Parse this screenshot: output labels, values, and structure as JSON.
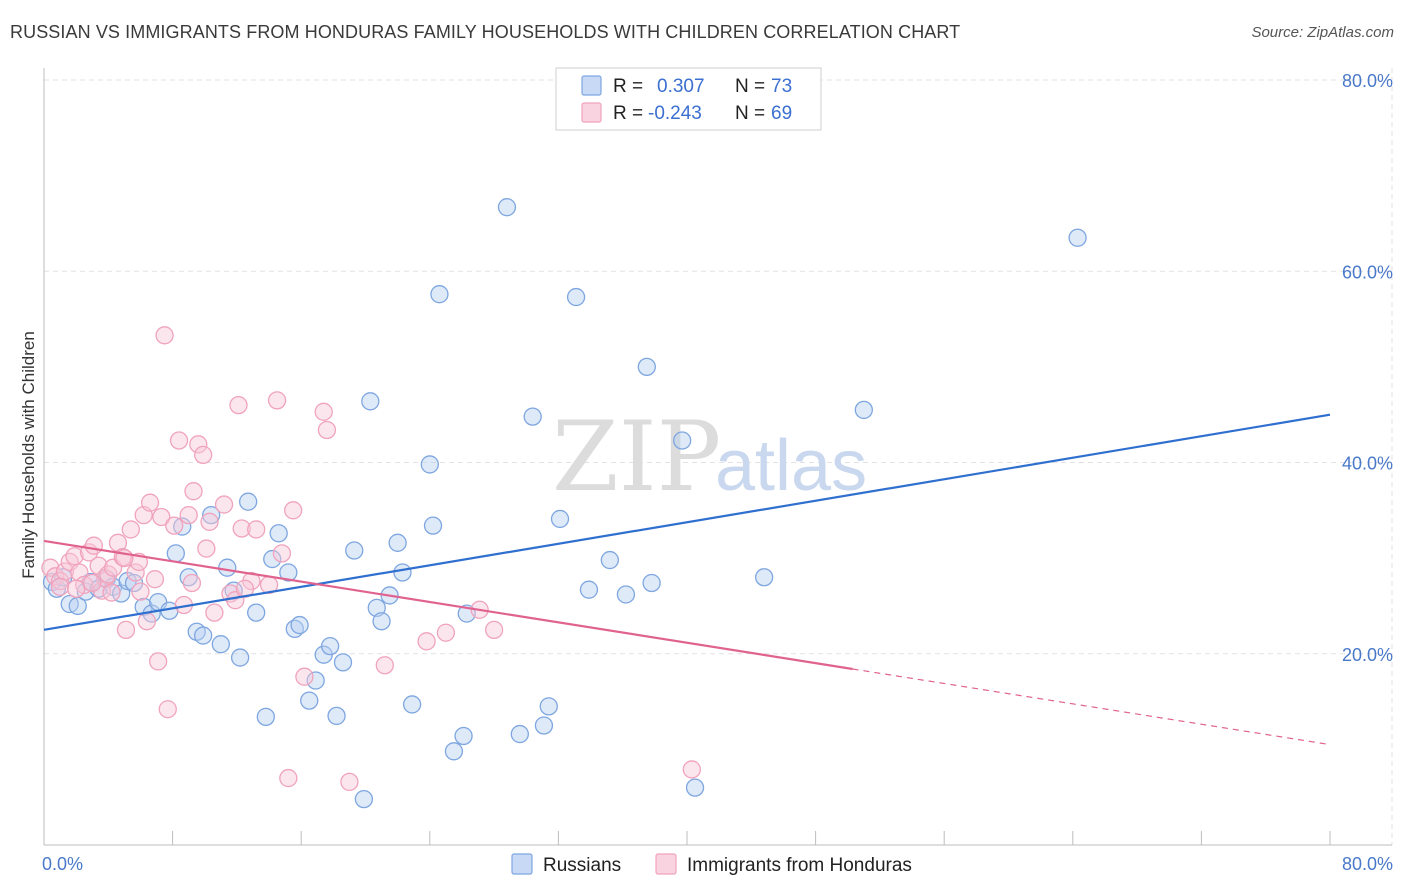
{
  "title": "RUSSIAN VS IMMIGRANTS FROM HONDURAS FAMILY HOUSEHOLDS WITH CHILDREN CORRELATION CHART",
  "source": "Source: ZipAtlas.com",
  "watermark": {
    "zip": "ZIP",
    "atlas": "atlas"
  },
  "chart_data": {
    "type": "scatter",
    "xlabel": "",
    "ylabel": "Family Households with Children",
    "xlim": [
      0,
      80
    ],
    "ylim": [
      0,
      80
    ],
    "x_tick_labels": [
      "0.0%",
      "80.0%"
    ],
    "y_ticks": [
      20,
      40,
      60,
      80
    ],
    "y_tick_labels": [
      "20.0%",
      "40.0%",
      "60.0%",
      "80.0%"
    ],
    "grid": true,
    "legend": {
      "position": "top-center",
      "entries": [
        {
          "r_label": "R =",
          "r_value": "0.307",
          "n_label": "N =",
          "n_value": "73"
        },
        {
          "r_label": "R =",
          "r_value": "-0.243",
          "n_label": "N =",
          "n_value": "69"
        }
      ]
    },
    "series": [
      {
        "name": "Russians",
        "color": "#7ea6e0",
        "fill": "#b9d0f2",
        "line_color": "#2f6fcf",
        "trend": {
          "x": [
            0,
            80
          ],
          "y": [
            22.5,
            45.0
          ],
          "dashed_from": null
        },
        "points": [
          [
            0.5,
            27.5
          ],
          [
            0.8,
            26.8
          ],
          [
            1.2,
            28.0
          ],
          [
            1.6,
            25.2
          ],
          [
            2.1,
            25.0
          ],
          [
            2.6,
            26.5
          ],
          [
            2.9,
            27.5
          ],
          [
            3.4,
            26.8
          ],
          [
            3.9,
            27.8
          ],
          [
            4.3,
            27.0
          ],
          [
            4.8,
            26.3
          ],
          [
            5.2,
            27.6
          ],
          [
            5.6,
            27.4
          ],
          [
            6.2,
            24.9
          ],
          [
            6.7,
            24.2
          ],
          [
            7.1,
            25.4
          ],
          [
            7.8,
            24.5
          ],
          [
            8.2,
            30.5
          ],
          [
            8.6,
            33.3
          ],
          [
            9.0,
            28.0
          ],
          [
            9.5,
            22.3
          ],
          [
            9.9,
            21.9
          ],
          [
            10.4,
            34.5
          ],
          [
            11.0,
            21.0
          ],
          [
            11.4,
            29.0
          ],
          [
            11.8,
            26.6
          ],
          [
            12.2,
            19.6
          ],
          [
            12.7,
            35.9
          ],
          [
            13.2,
            24.3
          ],
          [
            13.8,
            13.4
          ],
          [
            14.2,
            29.9
          ],
          [
            14.6,
            32.6
          ],
          [
            15.2,
            28.5
          ],
          [
            15.6,
            22.6
          ],
          [
            15.9,
            23.0
          ],
          [
            16.5,
            15.1
          ],
          [
            16.9,
            17.2
          ],
          [
            17.4,
            19.9
          ],
          [
            17.8,
            20.8
          ],
          [
            18.2,
            13.5
          ],
          [
            18.6,
            19.1
          ],
          [
            19.3,
            30.8
          ],
          [
            19.9,
            4.8
          ],
          [
            20.3,
            46.4
          ],
          [
            20.7,
            24.8
          ],
          [
            21.0,
            23.4
          ],
          [
            21.5,
            26.1
          ],
          [
            22.0,
            31.6
          ],
          [
            22.3,
            28.5
          ],
          [
            22.9,
            14.7
          ],
          [
            24.0,
            39.8
          ],
          [
            24.2,
            33.4
          ],
          [
            24.6,
            57.6
          ],
          [
            25.5,
            9.8
          ],
          [
            26.1,
            11.4
          ],
          [
            26.3,
            24.2
          ],
          [
            28.8,
            66.7
          ],
          [
            29.6,
            11.6
          ],
          [
            30.4,
            44.8
          ],
          [
            31.1,
            12.5
          ],
          [
            31.4,
            14.5
          ],
          [
            32.1,
            34.1
          ],
          [
            33.1,
            57.3
          ],
          [
            33.9,
            26.7
          ],
          [
            35.2,
            29.8
          ],
          [
            36.2,
            26.2
          ],
          [
            37.5,
            50.0
          ],
          [
            37.8,
            27.4
          ],
          [
            39.7,
            42.3
          ],
          [
            40.5,
            6.0
          ],
          [
            44.8,
            28.0
          ],
          [
            51.0,
            45.5
          ],
          [
            64.3,
            63.5
          ]
        ]
      },
      {
        "name": "Immigrants from Honduras",
        "color": "#f0a3bd",
        "fill": "#f8c8d8",
        "line_color": "#e0628f",
        "trend": {
          "x": [
            0,
            80
          ],
          "y": [
            31.8,
            10.5
          ],
          "dashed_from": 50.3
        },
        "points": [
          [
            0.4,
            29.0
          ],
          [
            0.7,
            28.1
          ],
          [
            1.0,
            27.6
          ],
          [
            1.3,
            28.6
          ],
          [
            1.6,
            29.6
          ],
          [
            1.9,
            30.2
          ],
          [
            2.2,
            28.5
          ],
          [
            2.5,
            27.2
          ],
          [
            2.8,
            30.6
          ],
          [
            3.1,
            31.3
          ],
          [
            3.4,
            29.2
          ],
          [
            3.6,
            26.6
          ],
          [
            3.8,
            27.9
          ],
          [
            4.0,
            28.3
          ],
          [
            4.3,
            29.0
          ],
          [
            4.6,
            31.6
          ],
          [
            4.9,
            30.1
          ],
          [
            5.1,
            22.5
          ],
          [
            5.4,
            33.0
          ],
          [
            5.7,
            28.5
          ],
          [
            5.9,
            29.6
          ],
          [
            6.2,
            34.5
          ],
          [
            6.4,
            23.4
          ],
          [
            6.6,
            35.8
          ],
          [
            6.9,
            27.8
          ],
          [
            7.1,
            19.2
          ],
          [
            7.3,
            34.3
          ],
          [
            7.5,
            53.3
          ],
          [
            7.7,
            14.2
          ],
          [
            8.1,
            33.4
          ],
          [
            8.4,
            42.3
          ],
          [
            8.7,
            25.1
          ],
          [
            9.0,
            34.5
          ],
          [
            9.3,
            37.0
          ],
          [
            9.6,
            41.9
          ],
          [
            9.9,
            40.8
          ],
          [
            10.1,
            31.0
          ],
          [
            10.3,
            33.8
          ],
          [
            10.6,
            24.3
          ],
          [
            11.2,
            35.6
          ],
          [
            11.6,
            26.3
          ],
          [
            11.9,
            25.6
          ],
          [
            12.1,
            46.0
          ],
          [
            12.3,
            33.1
          ],
          [
            12.9,
            27.6
          ],
          [
            13.2,
            33.0
          ],
          [
            14.5,
            46.5
          ],
          [
            14.8,
            30.5
          ],
          [
            15.2,
            7.0
          ],
          [
            15.5,
            35.0
          ],
          [
            16.2,
            17.6
          ],
          [
            17.4,
            45.3
          ],
          [
            17.6,
            43.4
          ],
          [
            19.0,
            6.6
          ],
          [
            21.2,
            18.8
          ],
          [
            23.8,
            21.3
          ],
          [
            25.0,
            22.2
          ],
          [
            27.1,
            24.6
          ],
          [
            28.0,
            22.5
          ],
          [
            40.3,
            7.9
          ],
          [
            1.0,
            27.0
          ],
          [
            2.0,
            26.8
          ],
          [
            3.0,
            27.4
          ],
          [
            4.2,
            26.4
          ],
          [
            5.0,
            30.0
          ],
          [
            6.0,
            26.5
          ],
          [
            9.2,
            27.4
          ],
          [
            12.5,
            26.8
          ],
          [
            14.0,
            27.2
          ]
        ]
      }
    ]
  }
}
